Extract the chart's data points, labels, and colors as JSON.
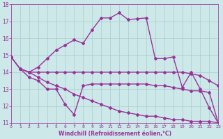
{
  "line1_x": [
    0,
    1,
    2,
    3,
    4,
    5,
    6,
    7,
    8,
    9,
    10,
    11,
    12,
    13,
    14,
    15,
    16,
    17,
    18,
    19,
    20,
    21,
    22,
    23
  ],
  "line1_y": [
    14.9,
    14.2,
    14.0,
    14.3,
    14.8,
    15.3,
    15.6,
    15.9,
    15.7,
    16.5,
    17.2,
    17.2,
    17.5,
    17.1,
    17.15,
    17.2,
    14.8,
    14.8,
    14.9,
    13.1,
    14.0,
    13.0,
    11.9,
    11.0
  ],
  "line2_x": [
    0,
    1,
    2,
    3,
    4,
    5,
    6,
    7,
    8,
    9,
    10,
    11,
    12,
    13,
    14,
    15,
    16,
    17,
    18,
    19,
    20,
    21,
    22,
    23
  ],
  "line2_y": [
    14.9,
    14.2,
    14.0,
    14.0,
    14.0,
    14.0,
    14.0,
    14.0,
    14.0,
    14.0,
    14.0,
    14.0,
    14.0,
    14.0,
    14.0,
    14.0,
    14.0,
    14.0,
    14.0,
    14.0,
    13.9,
    13.8,
    13.5,
    13.2
  ],
  "line3_x": [
    1,
    2,
    3,
    4,
    5,
    6,
    7,
    8,
    9,
    10,
    11,
    12,
    13,
    14,
    15,
    16,
    17,
    18,
    19,
    20,
    21,
    22,
    23
  ],
  "line3_y": [
    14.2,
    13.7,
    13.5,
    13.0,
    13.0,
    12.1,
    11.5,
    13.2,
    13.3,
    13.3,
    13.3,
    13.3,
    13.3,
    13.3,
    13.3,
    13.2,
    13.2,
    13.1,
    13.0,
    12.9,
    12.9,
    12.8,
    11.0
  ],
  "line4_x": [
    0,
    1,
    2,
    3,
    4,
    5,
    6,
    7,
    8,
    9,
    10,
    11,
    12,
    13,
    14,
    15,
    16,
    17,
    18,
    19,
    20,
    21,
    22,
    23
  ],
  "line4_y": [
    14.9,
    14.2,
    14.0,
    13.7,
    13.4,
    13.2,
    13.0,
    12.7,
    12.5,
    12.3,
    12.1,
    11.9,
    11.7,
    11.6,
    11.5,
    11.4,
    11.4,
    11.3,
    11.2,
    11.2,
    11.1,
    11.1,
    11.1,
    11.0
  ],
  "color": "#993399",
  "bg_color": "#cce8e8",
  "grid_color": "#aacccc",
  "ylim": [
    11,
    18
  ],
  "xlim": [
    0,
    23
  ],
  "yticks": [
    11,
    12,
    13,
    14,
    15,
    16,
    17,
    18
  ],
  "xticks": [
    0,
    1,
    2,
    3,
    4,
    5,
    6,
    7,
    8,
    9,
    10,
    11,
    12,
    13,
    14,
    15,
    16,
    17,
    18,
    19,
    20,
    21,
    22,
    23
  ],
  "xlabel": "Windchill (Refroidissement éolien,°C)",
  "marker": "D",
  "markersize": 2,
  "linewidth": 1.0
}
